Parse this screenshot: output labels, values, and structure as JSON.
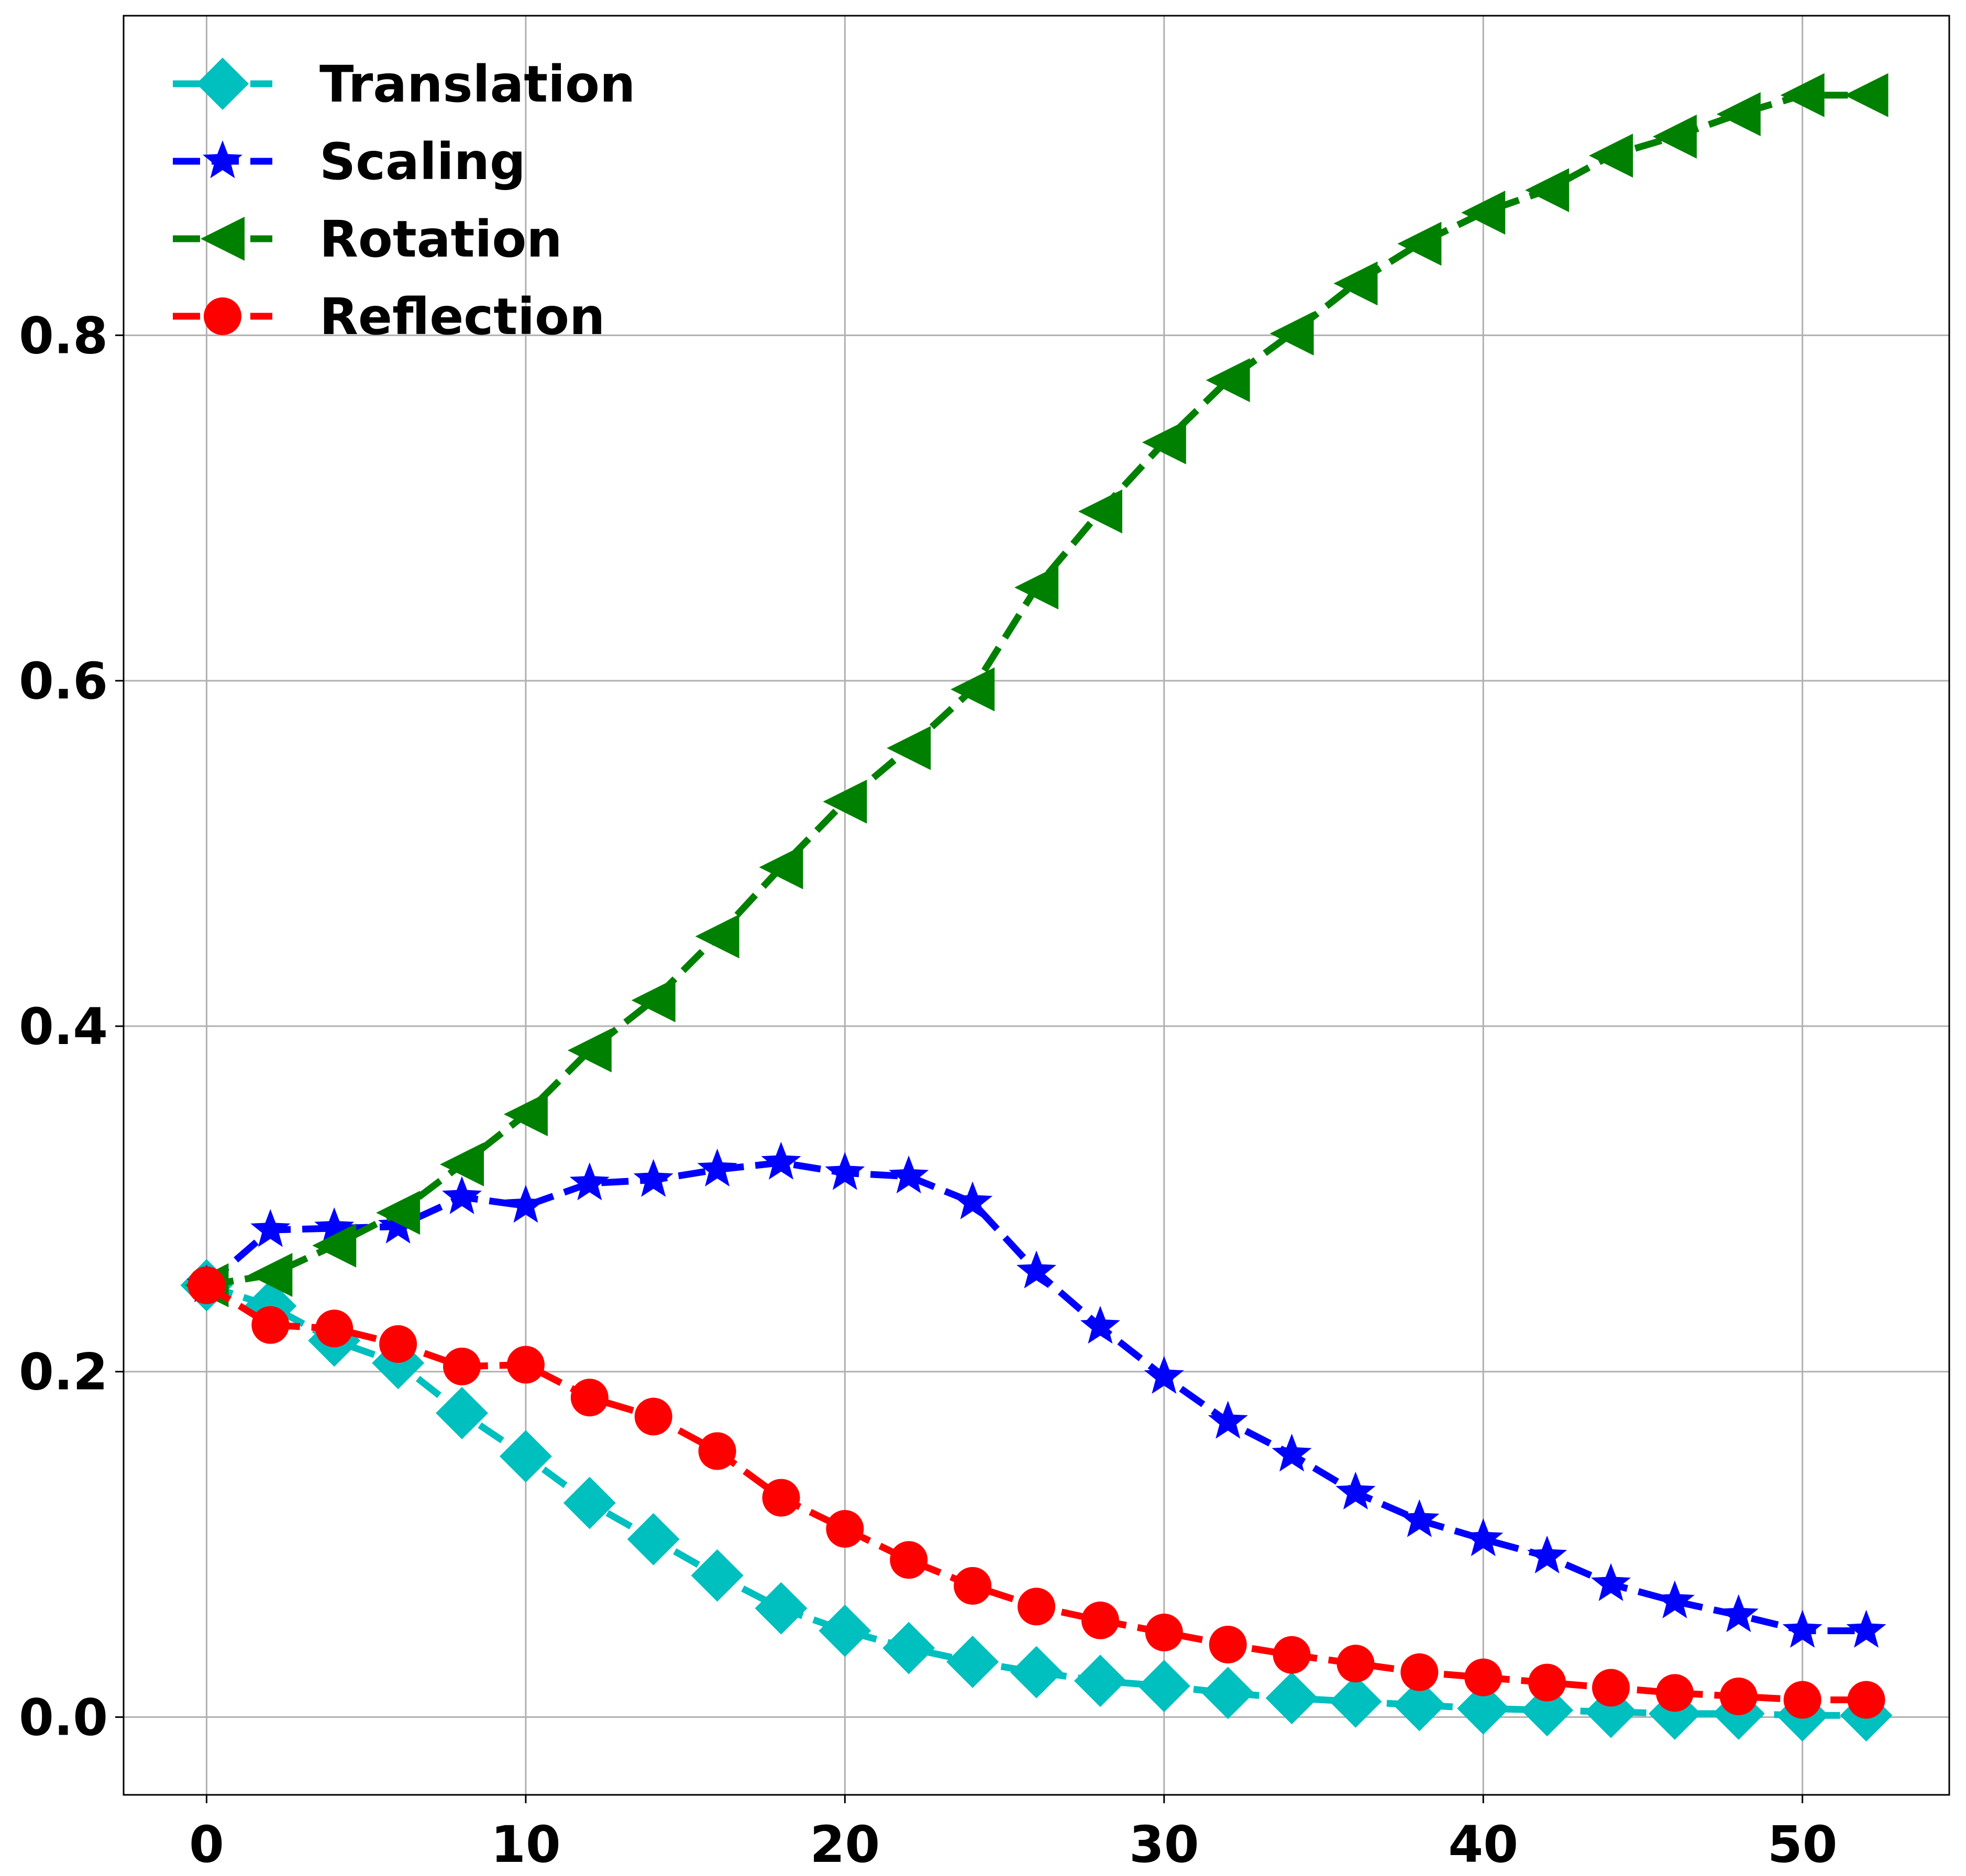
{
  "chart_data": {
    "type": "line",
    "title": "",
    "xlabel": "",
    "ylabel": "",
    "xlim": [
      -2.6,
      54.6
    ],
    "ylim": [
      -0.045,
      0.985
    ],
    "xticks": [
      0,
      10,
      20,
      30,
      40,
      50
    ],
    "yticks": [
      0.0,
      0.2,
      0.4,
      0.6,
      0.8
    ],
    "xtick_labels": [
      "0",
      "10",
      "20",
      "30",
      "40",
      "50"
    ],
    "ytick_labels": [
      "0.0",
      "0.2",
      "0.4",
      "0.6",
      "0.8"
    ],
    "grid": true,
    "legend_position": "top-left",
    "x": [
      0,
      2,
      4,
      6,
      8,
      10,
      12,
      14,
      16,
      18,
      20,
      22,
      24,
      26,
      28,
      30,
      32,
      34,
      36,
      38,
      40,
      42,
      44,
      46,
      48,
      50,
      52
    ],
    "series": [
      {
        "name": "Translation",
        "color": "#00bfbf",
        "marker": "diamond",
        "values": [
          0.25,
          0.238,
          0.218,
          0.205,
          0.176,
          0.151,
          0.124,
          0.103,
          0.082,
          0.063,
          0.05,
          0.04,
          0.032,
          0.026,
          0.021,
          0.018,
          0.014,
          0.011,
          0.009,
          0.007,
          0.005,
          0.004,
          0.003,
          0.002,
          0.002,
          0.001,
          0.001
        ]
      },
      {
        "name": "Scaling",
        "color": "#0000ff",
        "marker": "star",
        "values": [
          0.25,
          0.282,
          0.283,
          0.284,
          0.301,
          0.296,
          0.309,
          0.311,
          0.317,
          0.321,
          0.315,
          0.313,
          0.298,
          0.258,
          0.226,
          0.197,
          0.171,
          0.152,
          0.13,
          0.114,
          0.103,
          0.093,
          0.077,
          0.067,
          0.059,
          0.05,
          0.05
        ]
      },
      {
        "name": "Rotation",
        "color": "#008000",
        "marker": "triangle-left",
        "values": [
          0.25,
          0.256,
          0.273,
          0.292,
          0.32,
          0.349,
          0.386,
          0.415,
          0.452,
          0.492,
          0.53,
          0.561,
          0.595,
          0.654,
          0.698,
          0.738,
          0.774,
          0.801,
          0.83,
          0.853,
          0.871,
          0.884,
          0.904,
          0.915,
          0.928,
          0.939,
          0.939
        ]
      },
      {
        "name": "Reflection",
        "color": "#ff0000",
        "marker": "circle",
        "values": [
          0.25,
          0.227,
          0.225,
          0.216,
          0.203,
          0.204,
          0.185,
          0.174,
          0.154,
          0.127,
          0.109,
          0.091,
          0.076,
          0.064,
          0.056,
          0.049,
          0.042,
          0.036,
          0.031,
          0.026,
          0.023,
          0.02,
          0.017,
          0.014,
          0.012,
          0.01,
          0.01
        ]
      }
    ]
  }
}
